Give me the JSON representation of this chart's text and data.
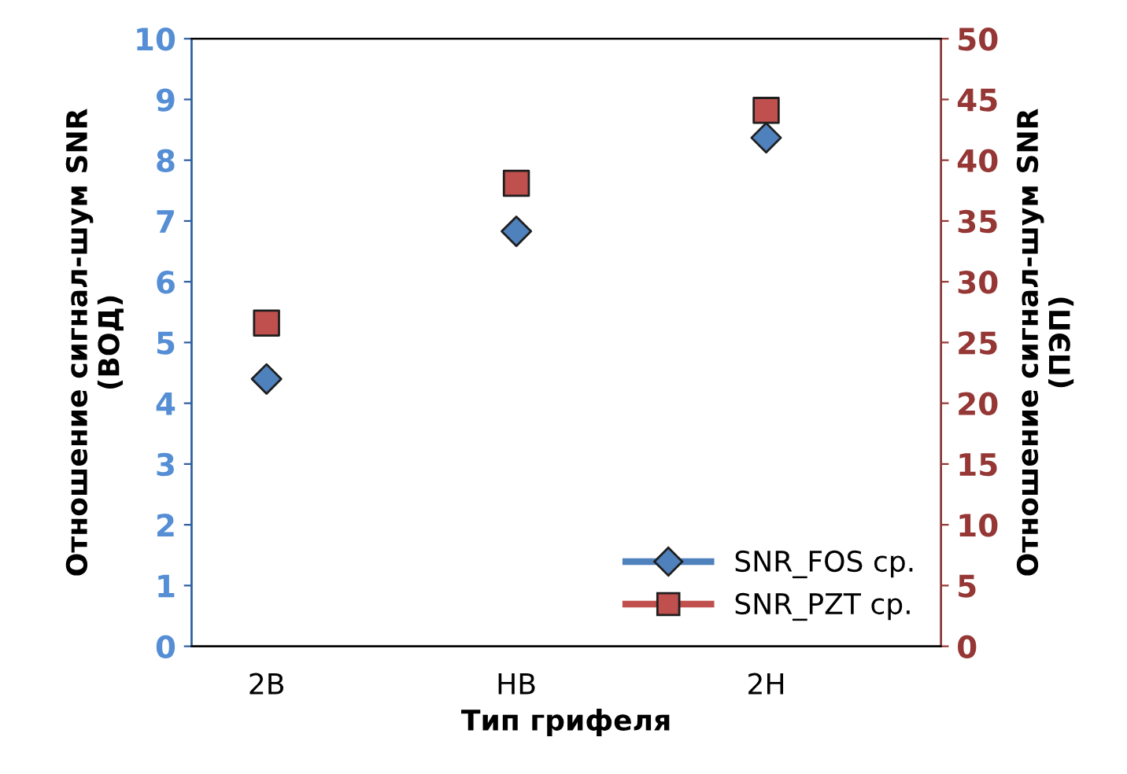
{
  "chart_data": {
    "type": "scatter",
    "xlabel": "Тип грифеля",
    "ylabel": "Отношение сигнал-шум SNR\n(ВОД)",
    "y2label": "Отношение сигнал-шум SNR\n(ПЭП)",
    "categories": [
      "2B",
      "HB",
      "2H"
    ],
    "series": [
      {
        "name": "SNR_FOS ср.",
        "color": "#4f81bd",
        "marker": "diamond",
        "values": [
          4.4,
          6.83,
          8.37
        ]
      },
      {
        "name": "SNR_PZT ср.",
        "color": "#c0504d",
        "marker": "square",
        "axis": "y2",
        "values": [
          26.6,
          38.1,
          44.1
        ]
      }
    ],
    "ylim": [
      0,
      10
    ],
    "yticks": [
      0,
      1,
      2,
      3,
      4,
      5,
      6,
      7,
      8,
      9,
      10
    ],
    "y2lim": [
      0,
      50
    ],
    "y2ticks": [
      0,
      5,
      10,
      15,
      20,
      25,
      30,
      35,
      40,
      45,
      50
    ],
    "grid": false,
    "legend": "bottom right"
  }
}
